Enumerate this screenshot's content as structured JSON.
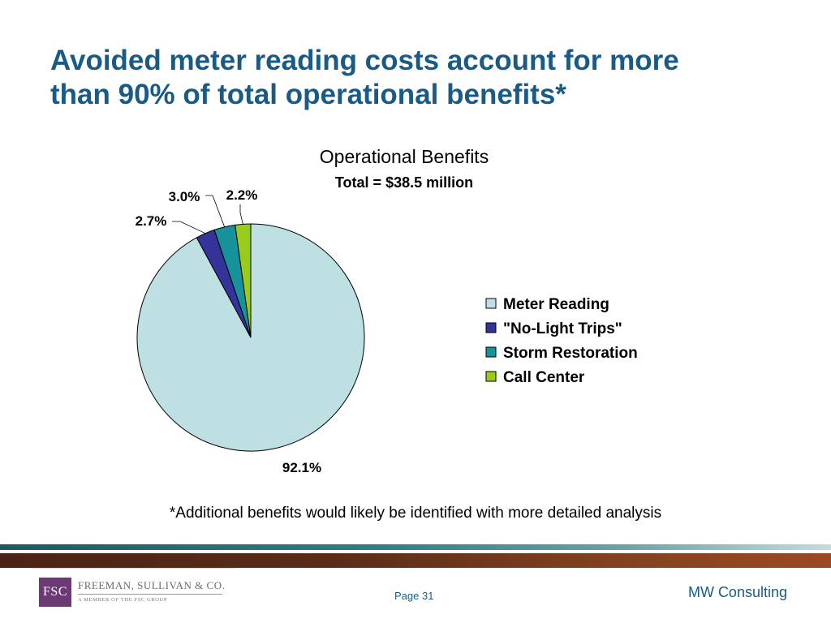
{
  "slide": {
    "title_line1": "Avoided meter reading costs account for more",
    "title_line2": "than 90% of total operational benefits*",
    "footnote": "*Additional benefits would likely be identified with more detailed analysis",
    "page_label": "Page 31",
    "company": "MW Consulting",
    "colors": {
      "title": "#1a5b86",
      "accent_band": "#2d7e88",
      "brown_band": "#5a2c18"
    }
  },
  "logo": {
    "mark": "FSC",
    "name": "FREEMAN, SULLIVAN & CO.",
    "tagline": "A MEMBER OF THE FSC GROUP",
    "mark_color": "#6b3a73"
  },
  "chart_data": {
    "type": "pie",
    "title": "Operational Benefits",
    "subtitle": "Total = $38.5 million",
    "legend_position": "right",
    "slices": [
      {
        "name": "Meter Reading",
        "value": 92.1,
        "label": "92.1%",
        "color": "#bfe0e3"
      },
      {
        "name": "\"No-Light Trips\"",
        "value": 2.7,
        "label": "2.7%",
        "color": "#33339a"
      },
      {
        "name": "Storm Restoration",
        "value": 3.0,
        "label": "3.0%",
        "color": "#16929a"
      },
      {
        "name": "Call Center",
        "value": 2.2,
        "label": "2.2%",
        "color": "#99cc1a"
      }
    ]
  }
}
